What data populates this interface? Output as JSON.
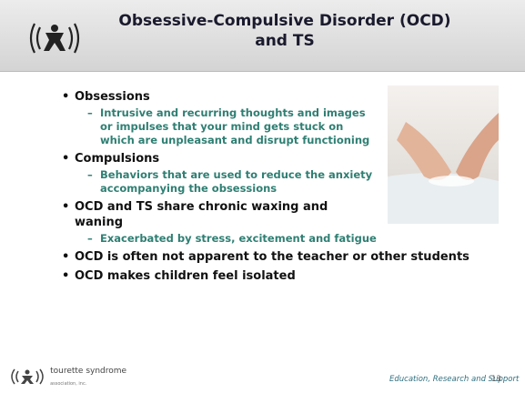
{
  "header": {
    "title": "Obsessive-Compulsive Disorder (OCD) and TS"
  },
  "bullets": [
    {
      "text": "Obsessions",
      "sub": [
        "Intrusive and recurring thoughts and images or impulses that your mind gets stuck on which are unpleasant and disrupt functioning"
      ]
    },
    {
      "text": "Compulsions",
      "sub": [
        "Behaviors that are used to reduce the anxiety accompanying the obsessions"
      ]
    },
    {
      "text": "OCD and TS share chronic waxing and waning",
      "sub": [
        "Exacerbated by stress, excitement and fatigue"
      ]
    },
    {
      "text": "OCD is often not apparent to the teacher or other students"
    },
    {
      "text": "OCD makes children feel isolated"
    }
  ],
  "footer": {
    "logo_text": "tourette syndrome",
    "logo_subtext": "association, inc.",
    "tagline": "Education, Research and Support",
    "page": "13"
  }
}
